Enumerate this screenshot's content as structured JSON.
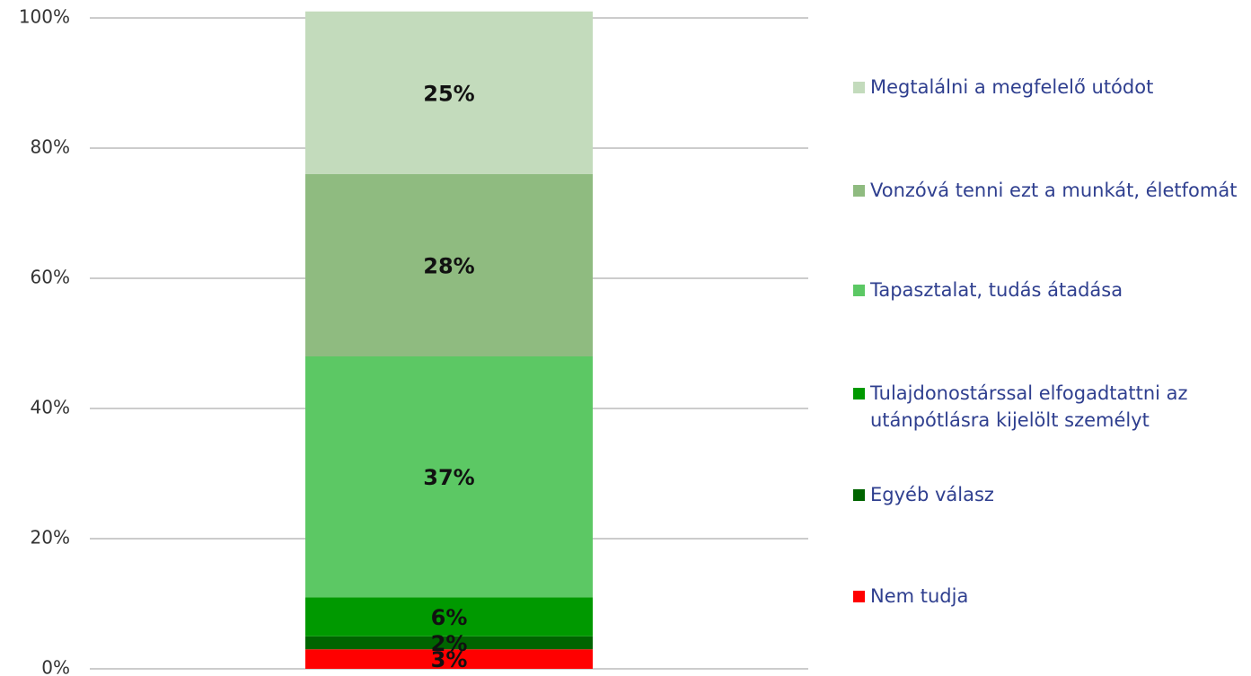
{
  "chart_data": {
    "type": "bar",
    "stacked": true,
    "categories": [
      null
    ],
    "series": [
      {
        "name": "Nem tudja",
        "color": "#ff0000",
        "values": [
          3
        ],
        "value_labels": [
          "3%"
        ]
      },
      {
        "name": "Egyéb válasz",
        "color": "#006400",
        "values": [
          2
        ],
        "value_labels": [
          "2%"
        ]
      },
      {
        "name": "Tulajdonostárssal elfogadtattni az utánpótlásra kijelölt személyt",
        "color": "#009900",
        "values": [
          6
        ],
        "value_labels": [
          "6%"
        ]
      },
      {
        "name": "Tapasztalat, tudás átadása",
        "color": "#5cc864",
        "values": [
          37
        ],
        "value_labels": [
          "37%"
        ]
      },
      {
        "name": "Vonzóvá tenni ezt a munkát, életfomát",
        "color": "#8fbb80",
        "values": [
          28
        ],
        "value_labels": [
          "28%"
        ]
      },
      {
        "name": "Megtalálni a megfelelő utódot",
        "color": "#c3dbbc",
        "values": [
          25
        ],
        "value_labels": [
          "25%"
        ]
      }
    ],
    "ylim": [
      0,
      100
    ],
    "yticks": [
      {
        "value": 0,
        "label": "0%"
      },
      {
        "value": 20,
        "label": "20%"
      },
      {
        "value": 40,
        "label": "40%"
      },
      {
        "value": 60,
        "label": "60%"
      },
      {
        "value": 80,
        "label": "80%"
      },
      {
        "value": 100,
        "label": "100%"
      }
    ],
    "grid": true,
    "legend": "right"
  }
}
